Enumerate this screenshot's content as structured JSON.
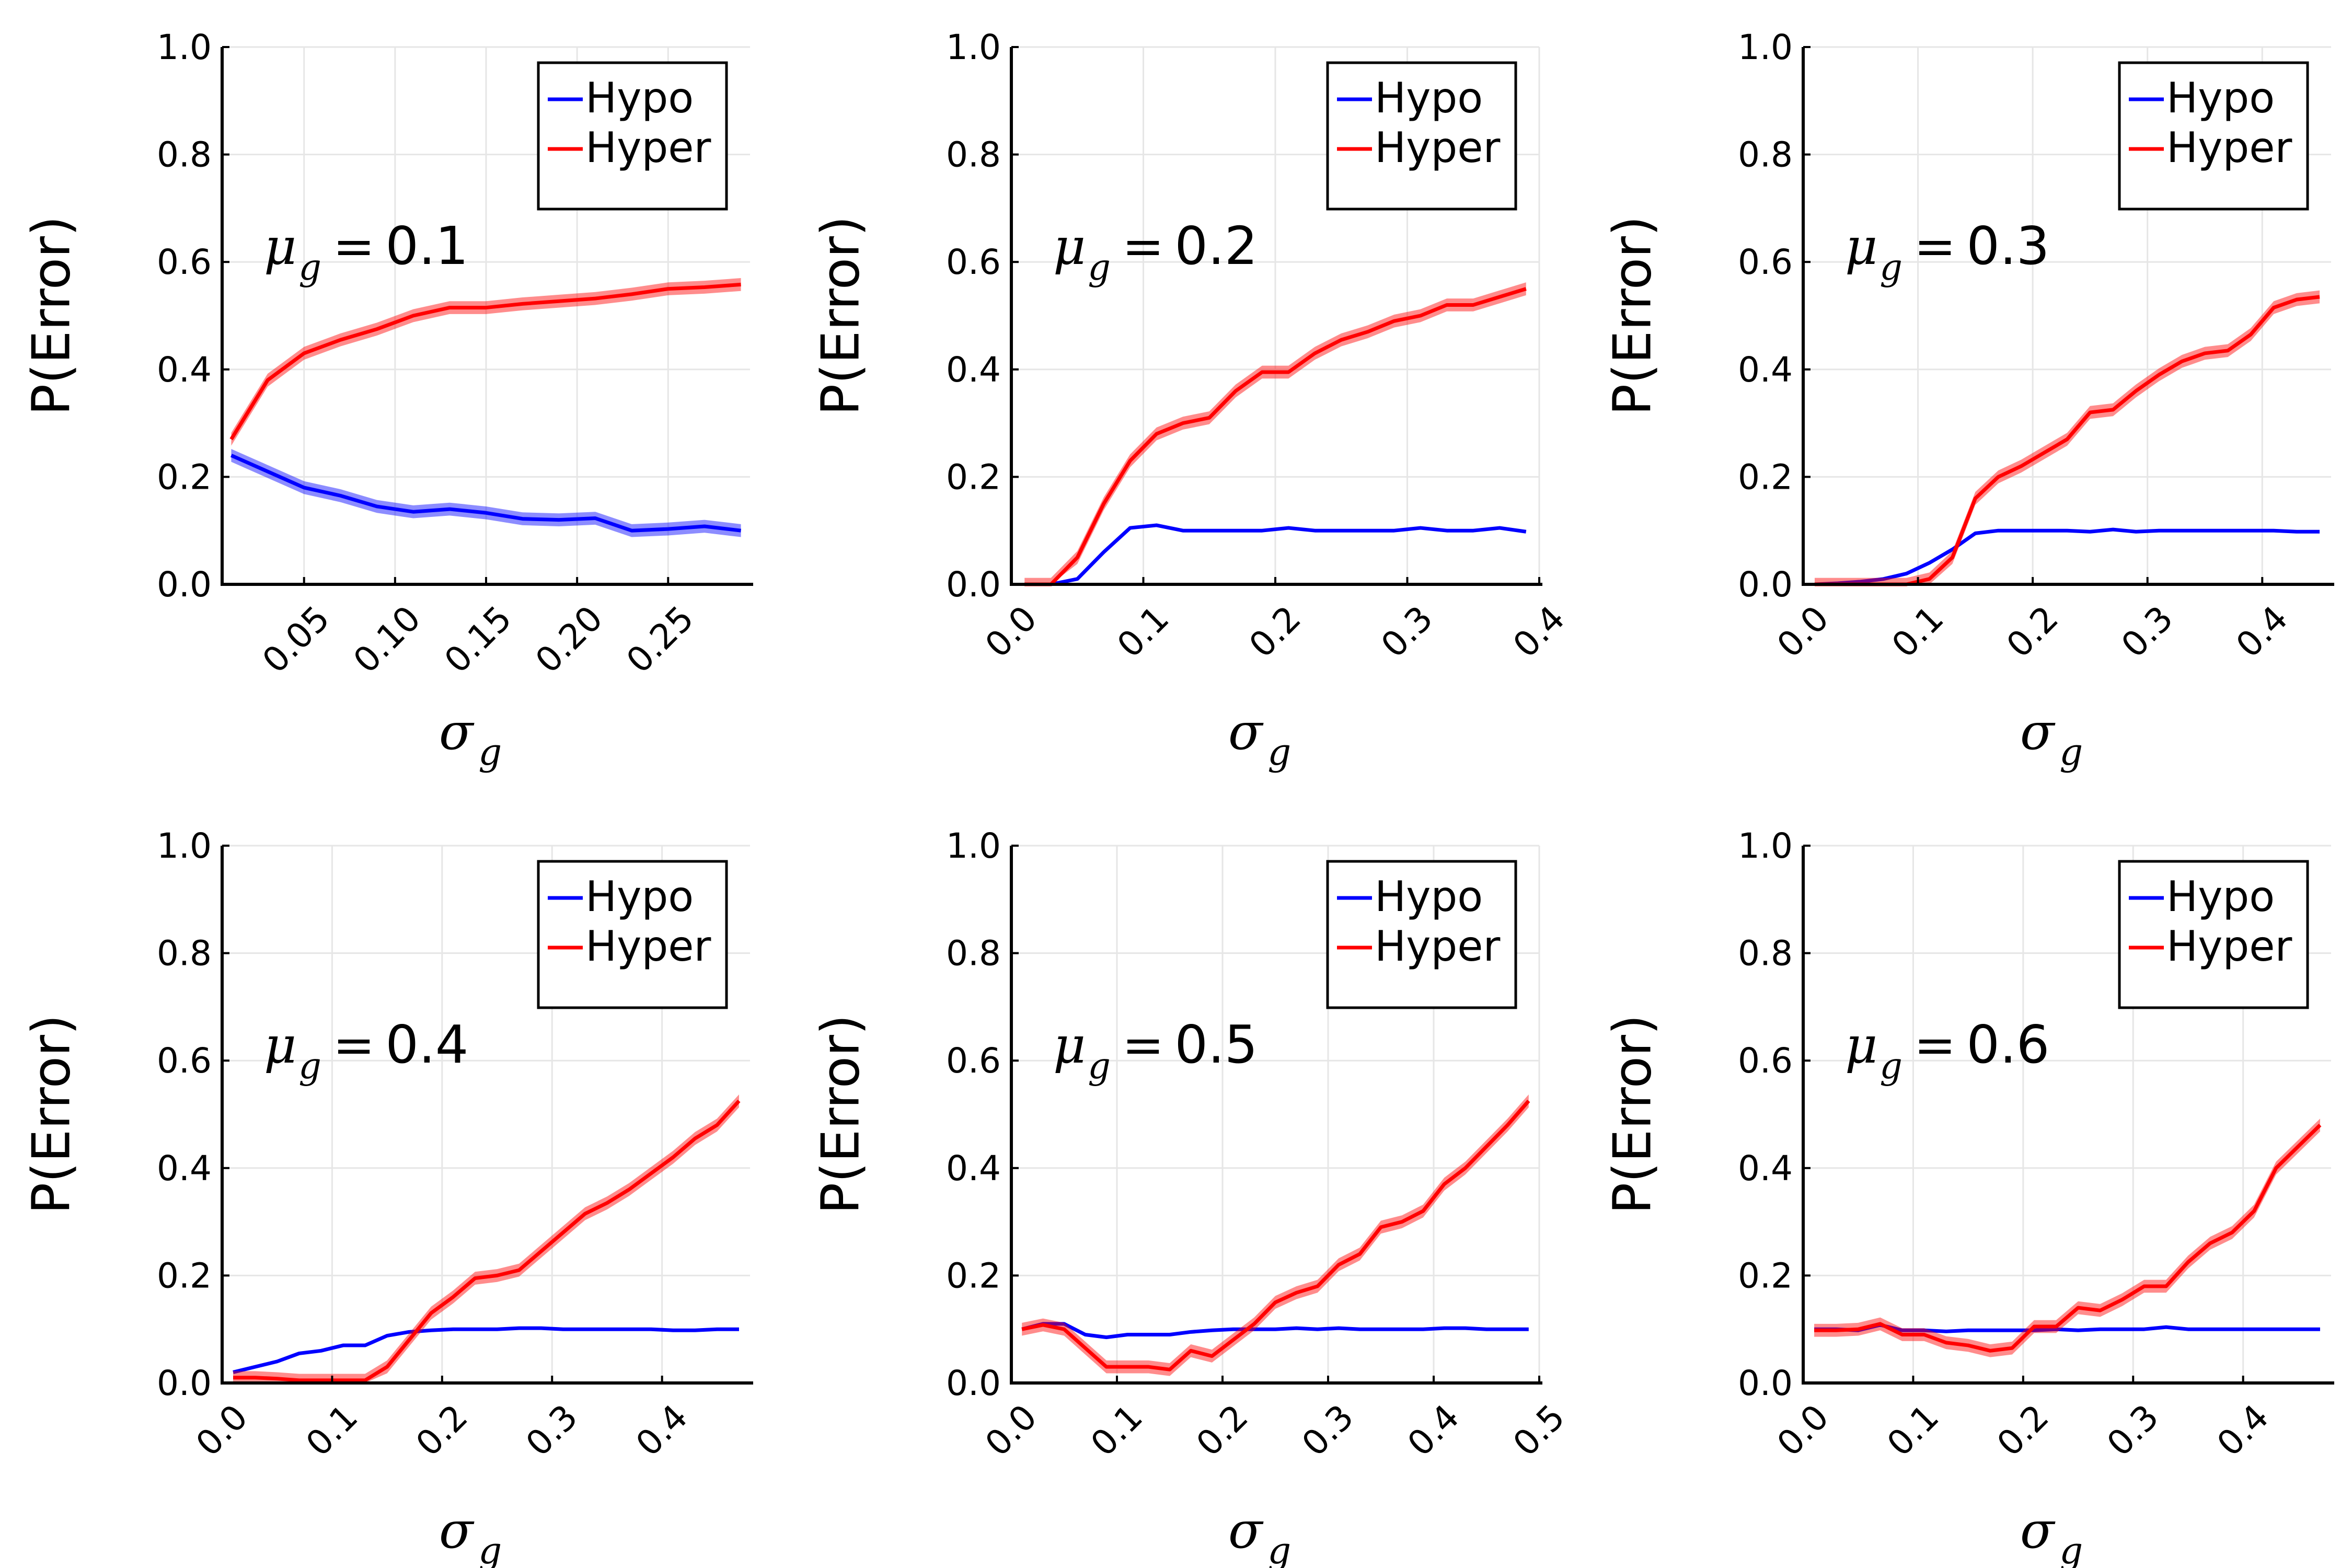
{
  "chart_data": [
    {
      "type": "line",
      "annotation": "0.1",
      "xlabel": "σ",
      "xlabel_sub": "g",
      "ylabel": "P(Error)",
      "xlim": [
        0.005,
        0.295
      ],
      "ylim": [
        0,
        1.0
      ],
      "xticks": [
        0.05,
        0.1,
        0.15,
        0.2,
        0.25
      ],
      "xtick_labels": [
        "0.05",
        "0.10",
        "0.15",
        "0.20",
        "0.25"
      ],
      "yticks": [
        0,
        0.2,
        0.4,
        0.6,
        0.8,
        1.0
      ],
      "ytick_labels": [
        "0.0",
        "0.2",
        "0.4",
        "0.6",
        "0.8",
        "1.0"
      ],
      "grid": true,
      "legend": "top-right",
      "series": [
        {
          "name": "Hypo",
          "color": "#0000ff",
          "x": [
            0.01,
            0.03,
            0.05,
            0.07,
            0.09,
            0.11,
            0.13,
            0.15,
            0.17,
            0.19,
            0.21,
            0.23,
            0.25,
            0.27,
            0.29
          ],
          "y": [
            0.24,
            0.21,
            0.18,
            0.165,
            0.145,
            0.135,
            0.14,
            0.133,
            0.122,
            0.12,
            0.123,
            0.1,
            0.103,
            0.108,
            0.1
          ],
          "band": 0.012
        },
        {
          "name": "Hyper",
          "color": "#ff0000",
          "x": [
            0.01,
            0.03,
            0.05,
            0.07,
            0.09,
            0.11,
            0.13,
            0.15,
            0.17,
            0.19,
            0.21,
            0.23,
            0.25,
            0.27,
            0.29
          ],
          "y": [
            0.27,
            0.38,
            0.43,
            0.455,
            0.475,
            0.5,
            0.515,
            0.515,
            0.522,
            0.527,
            0.532,
            0.54,
            0.55,
            0.553,
            0.558
          ],
          "band": 0.012
        }
      ]
    },
    {
      "type": "line",
      "annotation": "0.2",
      "xlabel": "σ",
      "xlabel_sub": "g",
      "ylabel": "P(Error)",
      "xlim": [
        0.0,
        0.4
      ],
      "ylim": [
        0,
        1.0
      ],
      "xticks": [
        0.0,
        0.1,
        0.2,
        0.3,
        0.4
      ],
      "xtick_labels": [
        "0.0",
        "0.1",
        "0.2",
        "0.3",
        "0.4"
      ],
      "yticks": [
        0,
        0.2,
        0.4,
        0.6,
        0.8,
        1.0
      ],
      "ytick_labels": [
        "0.0",
        "0.2",
        "0.4",
        "0.6",
        "0.8",
        "1.0"
      ],
      "grid": true,
      "legend": "top-right",
      "series": [
        {
          "name": "Hypo",
          "color": "#0000ff",
          "x": [
            0.01,
            0.03,
            0.05,
            0.07,
            0.09,
            0.11,
            0.13,
            0.15,
            0.17,
            0.19,
            0.21,
            0.23,
            0.25,
            0.27,
            0.29,
            0.31,
            0.33,
            0.35,
            0.37,
            0.39
          ],
          "y": [
            0.0,
            0.0,
            0.01,
            0.06,
            0.105,
            0.11,
            0.1,
            0.1,
            0.1,
            0.1,
            0.105,
            0.1,
            0.1,
            0.1,
            0.1,
            0.105,
            0.1,
            0.1,
            0.105,
            0.098
          ],
          "band": 0.0
        },
        {
          "name": "Hyper",
          "color": "#ff0000",
          "x": [
            0.01,
            0.03,
            0.05,
            0.07,
            0.09,
            0.11,
            0.13,
            0.15,
            0.17,
            0.19,
            0.21,
            0.23,
            0.25,
            0.27,
            0.29,
            0.31,
            0.33,
            0.35,
            0.37,
            0.39
          ],
          "y": [
            0.0,
            0.0,
            0.05,
            0.15,
            0.23,
            0.28,
            0.3,
            0.31,
            0.36,
            0.395,
            0.395,
            0.43,
            0.455,
            0.47,
            0.49,
            0.5,
            0.52,
            0.52,
            0.535,
            0.55
          ],
          "band": 0.012
        }
      ]
    },
    {
      "type": "line",
      "annotation": "0.3",
      "xlabel": "σ",
      "xlabel_sub": "g",
      "ylabel": "P(Error)",
      "xlim": [
        0.0,
        0.46
      ],
      "ylim": [
        0,
        1.0
      ],
      "xticks": [
        0.0,
        0.1,
        0.2,
        0.3,
        0.4
      ],
      "xtick_labels": [
        "0.0",
        "0.1",
        "0.2",
        "0.3",
        "0.4"
      ],
      "yticks": [
        0,
        0.2,
        0.4,
        0.6,
        0.8,
        1.0
      ],
      "ytick_labels": [
        "0.0",
        "0.2",
        "0.4",
        "0.6",
        "0.8",
        "1.0"
      ],
      "grid": true,
      "legend": "top-right",
      "series": [
        {
          "name": "Hypo",
          "color": "#0000ff",
          "x": [
            0.01,
            0.03,
            0.05,
            0.07,
            0.09,
            0.11,
            0.13,
            0.15,
            0.17,
            0.19,
            0.21,
            0.23,
            0.25,
            0.27,
            0.29,
            0.31,
            0.33,
            0.35,
            0.37,
            0.39,
            0.41,
            0.43,
            0.45
          ],
          "y": [
            0.0,
            0.002,
            0.005,
            0.01,
            0.02,
            0.04,
            0.065,
            0.095,
            0.1,
            0.1,
            0.1,
            0.1,
            0.098,
            0.102,
            0.098,
            0.1,
            0.1,
            0.1,
            0.1,
            0.1,
            0.1,
            0.098,
            0.098
          ],
          "band": 0.0
        },
        {
          "name": "Hyper",
          "color": "#ff0000",
          "x": [
            0.01,
            0.03,
            0.05,
            0.07,
            0.09,
            0.11,
            0.13,
            0.15,
            0.17,
            0.19,
            0.21,
            0.23,
            0.25,
            0.27,
            0.29,
            0.31,
            0.33,
            0.35,
            0.37,
            0.39,
            0.41,
            0.43,
            0.45
          ],
          "y": [
            0.0,
            0.0,
            0.0,
            0.0,
            0.0,
            0.01,
            0.05,
            0.16,
            0.2,
            0.22,
            0.245,
            0.27,
            0.32,
            0.325,
            0.36,
            0.39,
            0.415,
            0.43,
            0.435,
            0.465,
            0.515,
            0.53,
            0.535
          ],
          "band": 0.012
        }
      ]
    },
    {
      "type": "line",
      "annotation": "0.4",
      "xlabel": "σ",
      "xlabel_sub": "g",
      "ylabel": "P(Error)",
      "xlim": [
        0.0,
        0.48
      ],
      "ylim": [
        0,
        1.0
      ],
      "xticks": [
        0.0,
        0.1,
        0.2,
        0.3,
        0.4
      ],
      "xtick_labels": [
        "0.0",
        "0.1",
        "0.2",
        "0.3",
        "0.4"
      ],
      "yticks": [
        0,
        0.2,
        0.4,
        0.6,
        0.8,
        1.0
      ],
      "ytick_labels": [
        "0.0",
        "0.2",
        "0.4",
        "0.6",
        "0.8",
        "1.0"
      ],
      "grid": true,
      "legend": "top-right",
      "series": [
        {
          "name": "Hypo",
          "color": "#0000ff",
          "x": [
            0.01,
            0.03,
            0.05,
            0.07,
            0.09,
            0.11,
            0.13,
            0.15,
            0.17,
            0.19,
            0.21,
            0.23,
            0.25,
            0.27,
            0.29,
            0.31,
            0.33,
            0.35,
            0.37,
            0.39,
            0.41,
            0.43,
            0.45,
            0.47
          ],
          "y": [
            0.02,
            0.03,
            0.04,
            0.055,
            0.06,
            0.07,
            0.07,
            0.088,
            0.095,
            0.098,
            0.1,
            0.1,
            0.1,
            0.102,
            0.102,
            0.1,
            0.1,
            0.1,
            0.1,
            0.1,
            0.098,
            0.098,
            0.1,
            0.1
          ],
          "band": 0.0
        },
        {
          "name": "Hyper",
          "color": "#ff0000",
          "x": [
            0.01,
            0.03,
            0.05,
            0.07,
            0.09,
            0.11,
            0.13,
            0.15,
            0.17,
            0.19,
            0.21,
            0.23,
            0.25,
            0.27,
            0.29,
            0.31,
            0.33,
            0.35,
            0.37,
            0.39,
            0.41,
            0.43,
            0.45,
            0.47
          ],
          "y": [
            0.01,
            0.01,
            0.008,
            0.005,
            0.005,
            0.005,
            0.005,
            0.03,
            0.08,
            0.13,
            0.16,
            0.195,
            0.2,
            0.21,
            0.245,
            0.28,
            0.315,
            0.335,
            0.36,
            0.39,
            0.42,
            0.455,
            0.48,
            0.525
          ],
          "band": 0.012
        }
      ]
    },
    {
      "type": "line",
      "annotation": "0.5",
      "xlabel": "σ",
      "xlabel_sub": "g",
      "ylabel": "P(Error)",
      "xlim": [
        0.0,
        0.5
      ],
      "ylim": [
        0,
        1.0
      ],
      "xticks": [
        0.0,
        0.1,
        0.2,
        0.3,
        0.4,
        0.5
      ],
      "xtick_labels": [
        "0.0",
        "0.1",
        "0.2",
        "0.3",
        "0.4",
        "0.5"
      ],
      "yticks": [
        0,
        0.2,
        0.4,
        0.6,
        0.8,
        1.0
      ],
      "ytick_labels": [
        "0.0",
        "0.2",
        "0.4",
        "0.6",
        "0.8",
        "1.0"
      ],
      "grid": true,
      "legend": "top-right",
      "series": [
        {
          "name": "Hypo",
          "color": "#0000ff",
          "x": [
            0.01,
            0.03,
            0.05,
            0.07,
            0.09,
            0.11,
            0.13,
            0.15,
            0.17,
            0.19,
            0.21,
            0.23,
            0.25,
            0.27,
            0.29,
            0.31,
            0.33,
            0.35,
            0.37,
            0.39,
            0.41,
            0.43,
            0.45,
            0.47,
            0.49
          ],
          "y": [
            0.1,
            0.11,
            0.11,
            0.09,
            0.085,
            0.09,
            0.09,
            0.09,
            0.095,
            0.098,
            0.1,
            0.1,
            0.1,
            0.102,
            0.1,
            0.102,
            0.1,
            0.1,
            0.1,
            0.1,
            0.102,
            0.102,
            0.1,
            0.1,
            0.1
          ],
          "band": 0.0
        },
        {
          "name": "Hyper",
          "color": "#ff0000",
          "x": [
            0.01,
            0.03,
            0.05,
            0.07,
            0.09,
            0.11,
            0.13,
            0.15,
            0.17,
            0.19,
            0.21,
            0.23,
            0.25,
            0.27,
            0.29,
            0.31,
            0.33,
            0.35,
            0.37,
            0.39,
            0.41,
            0.43,
            0.45,
            0.47,
            0.49
          ],
          "y": [
            0.1,
            0.108,
            0.1,
            0.065,
            0.03,
            0.03,
            0.03,
            0.025,
            0.06,
            0.05,
            0.08,
            0.11,
            0.15,
            0.168,
            0.18,
            0.22,
            0.24,
            0.29,
            0.3,
            0.32,
            0.37,
            0.4,
            0.44,
            0.48,
            0.525
          ],
          "band": 0.012
        }
      ]
    },
    {
      "type": "line",
      "annotation": "0.6",
      "xlabel": "σ",
      "xlabel_sub": "g",
      "ylabel": "P(Error)",
      "xlim": [
        0.0,
        0.48
      ],
      "ylim": [
        0,
        1.0
      ],
      "xticks": [
        0.0,
        0.1,
        0.2,
        0.3,
        0.4
      ],
      "xtick_labels": [
        "0.0",
        "0.1",
        "0.2",
        "0.3",
        "0.4"
      ],
      "yticks": [
        0,
        0.2,
        0.4,
        0.6,
        0.8,
        1.0
      ],
      "ytick_labels": [
        "0.0",
        "0.2",
        "0.4",
        "0.6",
        "0.8",
        "1.0"
      ],
      "grid": true,
      "legend": "top-right",
      "series": [
        {
          "name": "Hypo",
          "color": "#0000ff",
          "x": [
            0.01,
            0.03,
            0.05,
            0.07,
            0.09,
            0.11,
            0.13,
            0.15,
            0.17,
            0.19,
            0.21,
            0.23,
            0.25,
            0.27,
            0.29,
            0.31,
            0.33,
            0.35,
            0.37,
            0.39,
            0.41,
            0.43,
            0.45,
            0.47
          ],
          "y": [
            0.1,
            0.1,
            0.098,
            0.108,
            0.098,
            0.098,
            0.096,
            0.098,
            0.098,
            0.098,
            0.098,
            0.1,
            0.098,
            0.1,
            0.1,
            0.1,
            0.104,
            0.1,
            0.1,
            0.1,
            0.1,
            0.1,
            0.1,
            0.1
          ],
          "band": 0.0
        },
        {
          "name": "Hyper",
          "color": "#ff0000",
          "x": [
            0.01,
            0.03,
            0.05,
            0.07,
            0.09,
            0.11,
            0.13,
            0.15,
            0.17,
            0.19,
            0.21,
            0.23,
            0.25,
            0.27,
            0.29,
            0.31,
            0.33,
            0.35,
            0.37,
            0.39,
            0.41,
            0.43,
            0.45,
            0.47
          ],
          "y": [
            0.098,
            0.098,
            0.1,
            0.11,
            0.09,
            0.09,
            0.075,
            0.07,
            0.06,
            0.065,
            0.105,
            0.105,
            0.14,
            0.135,
            0.155,
            0.18,
            0.18,
            0.225,
            0.26,
            0.28,
            0.32,
            0.4,
            0.44,
            0.48
          ],
          "band": 0.012
        }
      ]
    }
  ]
}
